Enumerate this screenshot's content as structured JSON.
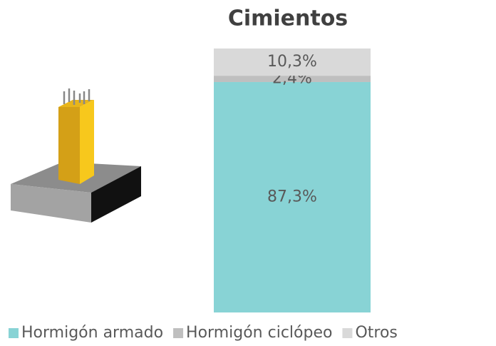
{
  "chart_data": {
    "type": "stacked_bar",
    "title": "Cimientos",
    "ylim": [
      0,
      100
    ],
    "series": [
      {
        "name": "Hormigón armado",
        "color": "#88d3d5",
        "values": [
          87.3
        ],
        "value_labels": [
          "87,3%"
        ]
      },
      {
        "name": "Hormigón ciclópeo",
        "color": "#bfbfbf",
        "values": [
          2.4
        ],
        "value_labels": [
          "2,4%"
        ]
      },
      {
        "name": "Otros",
        "color": "#d9d9d9",
        "values": [
          10.3
        ],
        "value_labels": [
          "10,3%"
        ]
      }
    ],
    "legend": "bottom"
  }
}
